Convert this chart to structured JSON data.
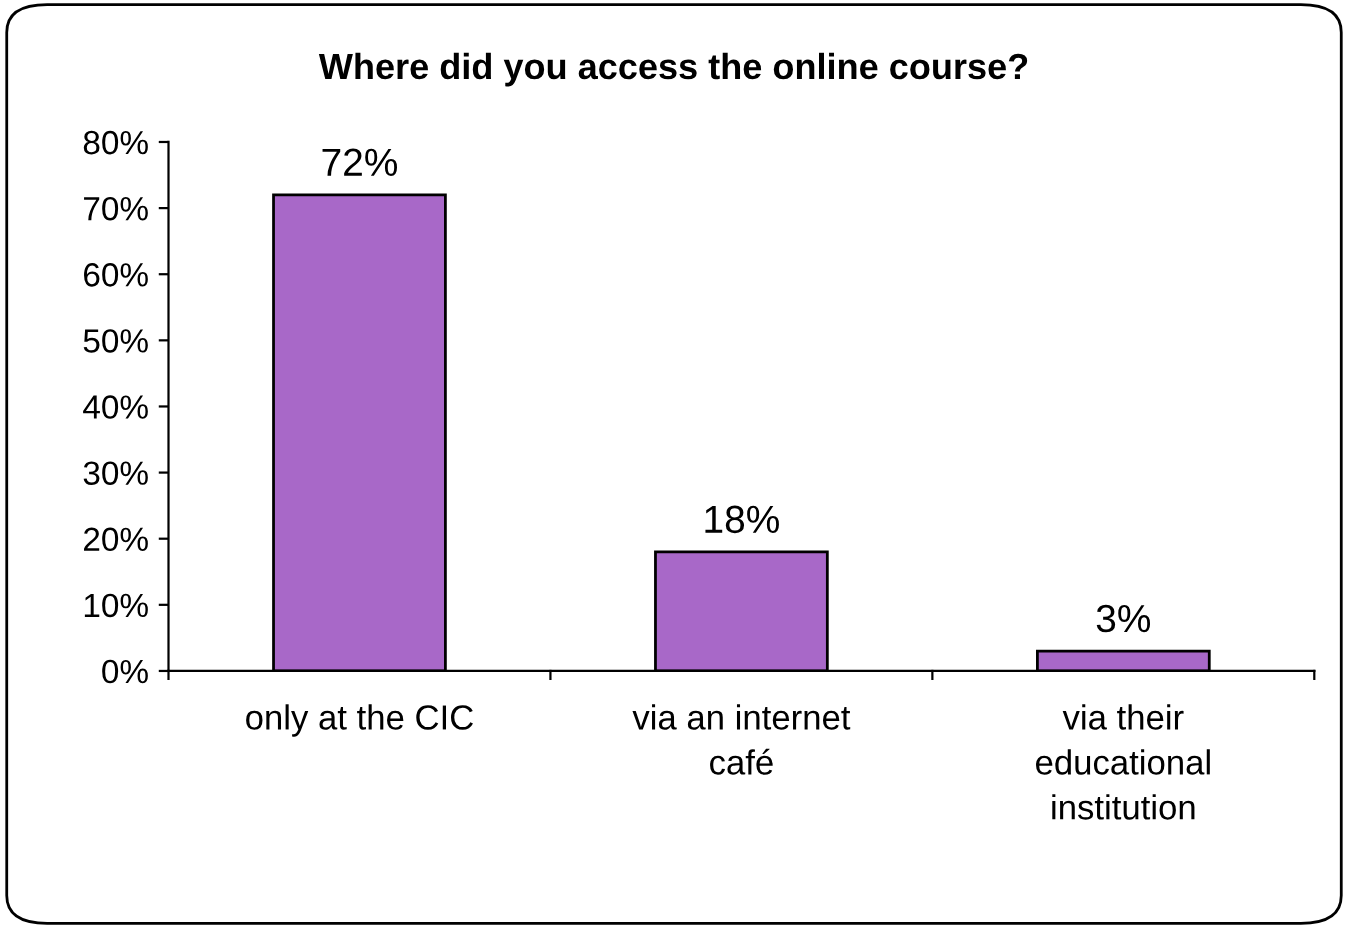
{
  "chart_data": {
    "type": "bar",
    "title": "Where did you access the online course?",
    "categories": [
      "only at the CIC",
      "via an internet\ncafé",
      "via their\neducational\ninstitution"
    ],
    "values": [
      72,
      18,
      3
    ],
    "color": "#a868c8",
    "value_labels": [
      "72%",
      "18%",
      "3%"
    ],
    "ylim": [
      0,
      80
    ],
    "yticks": [
      {
        "value": 0,
        "label": "0%"
      },
      {
        "value": 10,
        "label": "10%"
      },
      {
        "value": 20,
        "label": "20%"
      },
      {
        "value": 30,
        "label": "30%"
      },
      {
        "value": 40,
        "label": "40%"
      },
      {
        "value": 50,
        "label": "50%"
      },
      {
        "value": 60,
        "label": "60%"
      },
      {
        "value": 70,
        "label": "70%"
      },
      {
        "value": 80,
        "label": "80%"
      }
    ],
    "grid": false,
    "legend": false
  }
}
